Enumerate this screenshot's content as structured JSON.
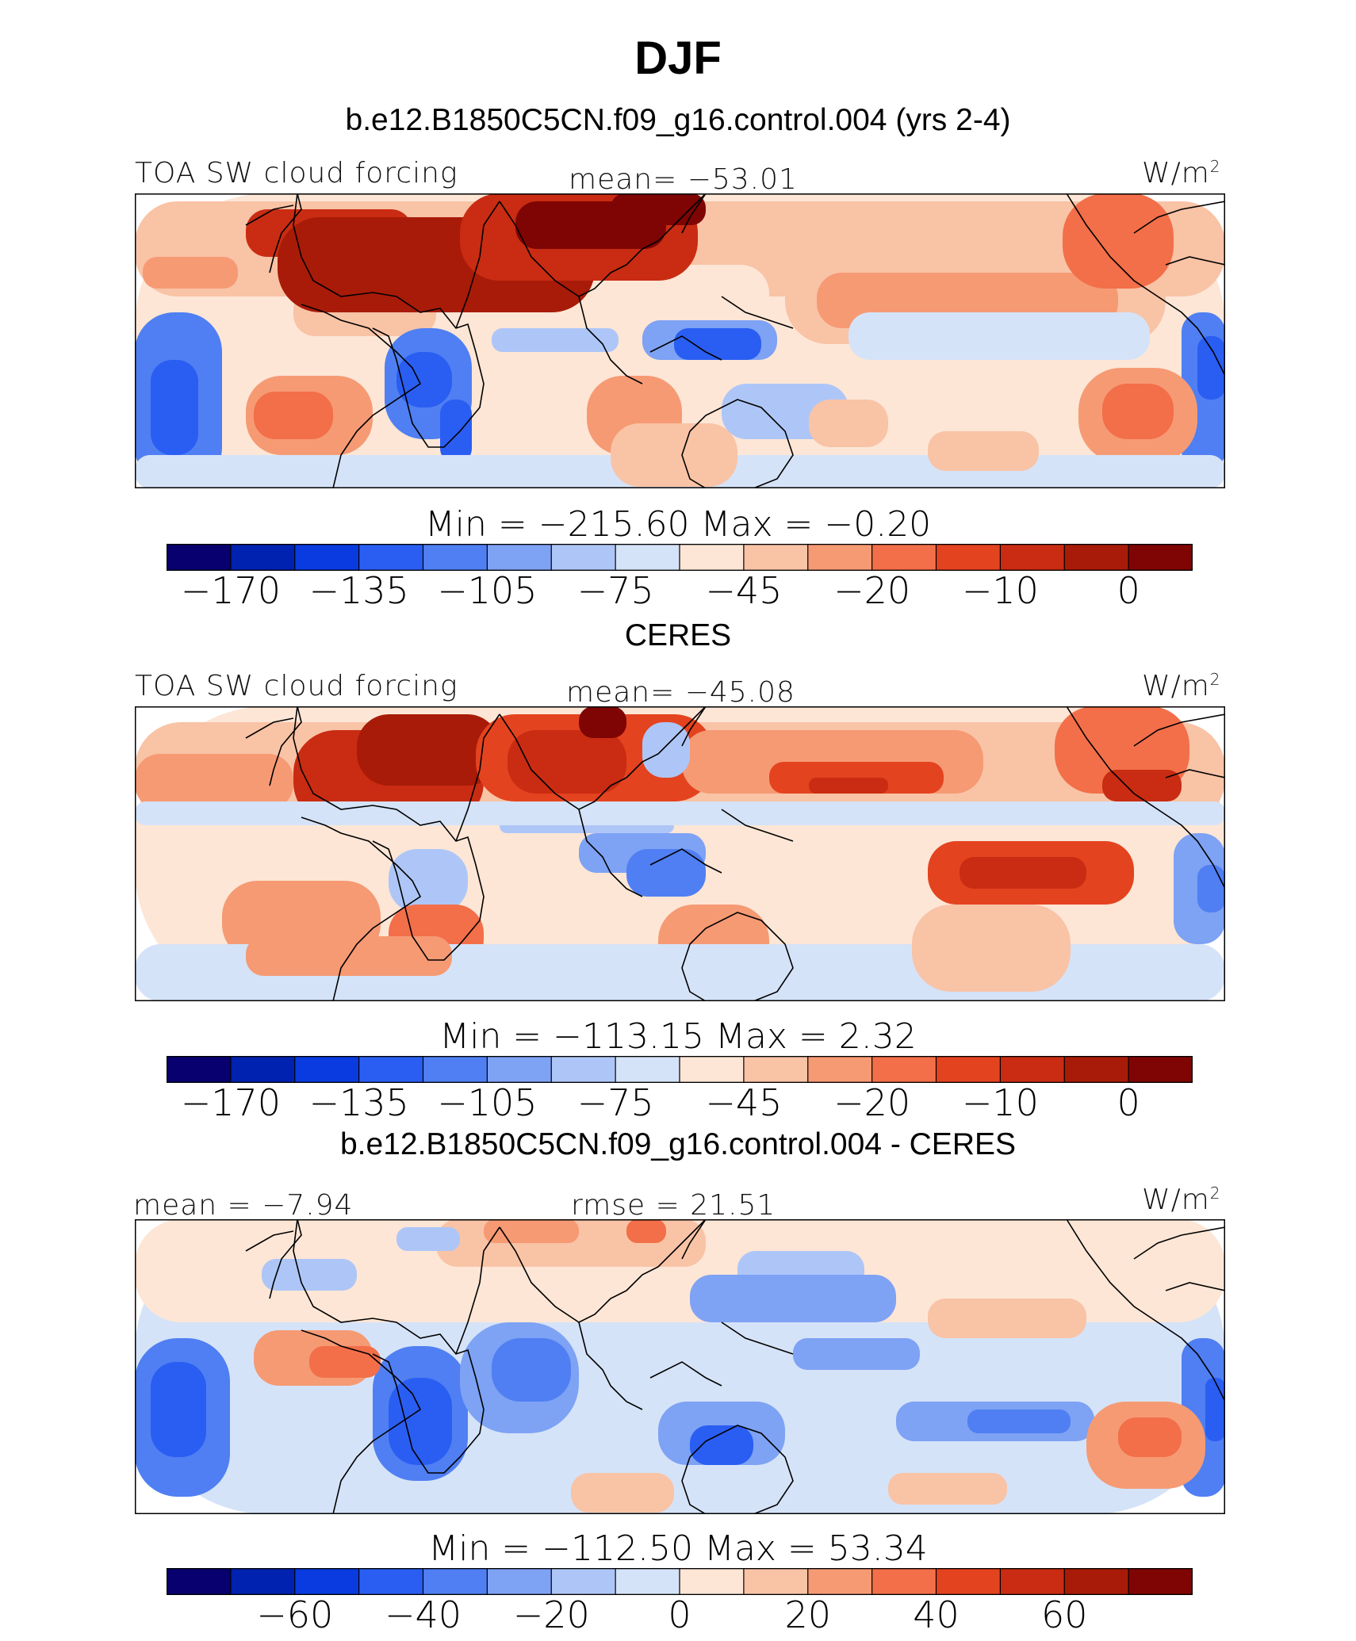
{
  "figure": {
    "season": "DJF"
  },
  "palette_colors": [
    "#08006e",
    "#0022b0",
    "#0a3be0",
    "#2a5ef2",
    "#4f7ff2",
    "#7ea2f4",
    "#aec6f7",
    "#d5e3f8",
    "#fde6d6",
    "#f9c3a6",
    "#f69a74",
    "#f26f49",
    "#e4431f",
    "#c92c12",
    "#a81b08",
    "#7e0503"
  ],
  "panels": [
    {
      "header": "b.e12.B1850C5CN.f09_g16.control.004 (yrs 2-4)",
      "left_label": "TOA SW cloud forcing",
      "center_label": "mean= −53.01",
      "units": "W/m",
      "units_sup": "2",
      "min_max": "Min  =  −215.60  Max  =    −0.20",
      "colorbar_ticks": [
        "−170",
        "−135",
        "−105",
        "−75",
        "−45",
        "−20",
        "−10",
        "0"
      ],
      "field": "model"
    },
    {
      "header": "CERES",
      "left_label": "TOA SW cloud forcing",
      "center_label": "mean= −45.08",
      "units": "W/m",
      "units_sup": "2",
      "min_max": "Min  =  −113.15  Max  =     2.32",
      "colorbar_ticks": [
        "−170",
        "−135",
        "−105",
        "−75",
        "−45",
        "−20",
        "−10",
        "0"
      ],
      "field": "obs"
    },
    {
      "header": "b.e12.B1850C5CN.f09_g16.control.004 - CERES",
      "left_label": "mean  =   −7.94",
      "center_label": "rmse  =   21.51",
      "units": "W/m",
      "units_sup": "2",
      "min_max": "Min  =  −112.50  Max  =   53.34",
      "colorbar_ticks": [
        "−60",
        "−40",
        "−20",
        "0",
        "20",
        "40",
        "60"
      ],
      "field": "diff"
    }
  ]
}
